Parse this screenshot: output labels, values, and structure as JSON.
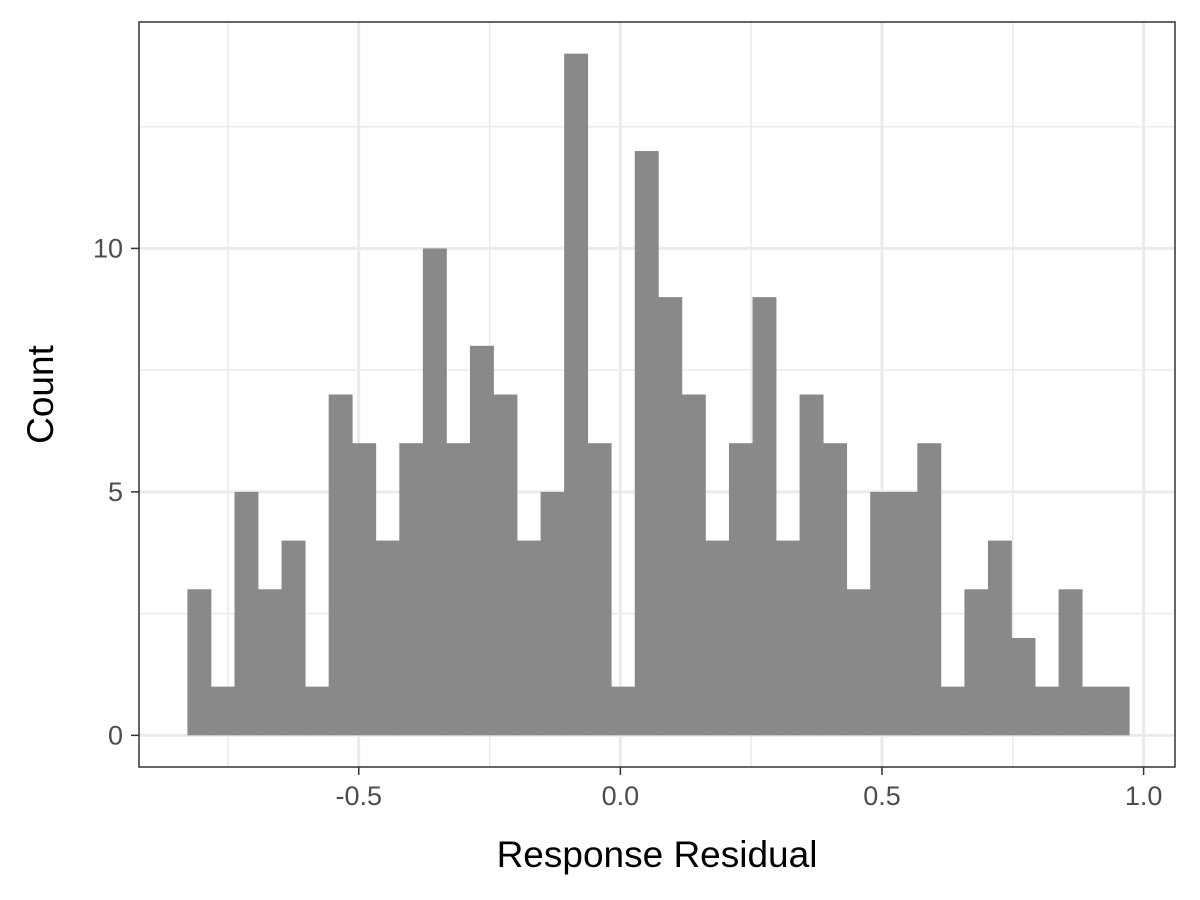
{
  "chart_data": {
    "type": "histogram",
    "xlabel": "Response Residual",
    "ylabel": "Count",
    "xlim": [
      -0.92,
      1.06
    ],
    "ylim": [
      -0.65,
      14.65
    ],
    "grid": true,
    "x_ticks": [
      {
        "value": -0.5,
        "label": "-0.5"
      },
      {
        "value": 0.0,
        "label": "0.0"
      },
      {
        "value": 0.5,
        "label": "0.5"
      },
      {
        "value": 1.0,
        "label": "1.0"
      }
    ],
    "x_minor_ticks": [
      -0.75,
      -0.25,
      0.25,
      0.75
    ],
    "y_ticks": [
      {
        "value": 0,
        "label": "0"
      },
      {
        "value": 5,
        "label": "5"
      },
      {
        "value": 10,
        "label": "10"
      }
    ],
    "y_minor_ticks": [
      2.5,
      7.5,
      12.5
    ],
    "bin_start": -0.8275,
    "bin_width": 0.045,
    "counts": [
      3,
      1,
      5,
      3,
      4,
      1,
      7,
      6,
      4,
      6,
      10,
      6,
      8,
      7,
      4,
      5,
      14,
      6,
      1,
      12,
      9,
      7,
      4,
      6,
      9,
      4,
      7,
      6,
      3,
      5,
      5,
      6,
      1,
      3,
      4,
      2,
      1,
      3,
      1,
      1
    ],
    "bar_color": "#898989",
    "grid_color": "#ebebeb",
    "panel_border_color": "#333333"
  }
}
